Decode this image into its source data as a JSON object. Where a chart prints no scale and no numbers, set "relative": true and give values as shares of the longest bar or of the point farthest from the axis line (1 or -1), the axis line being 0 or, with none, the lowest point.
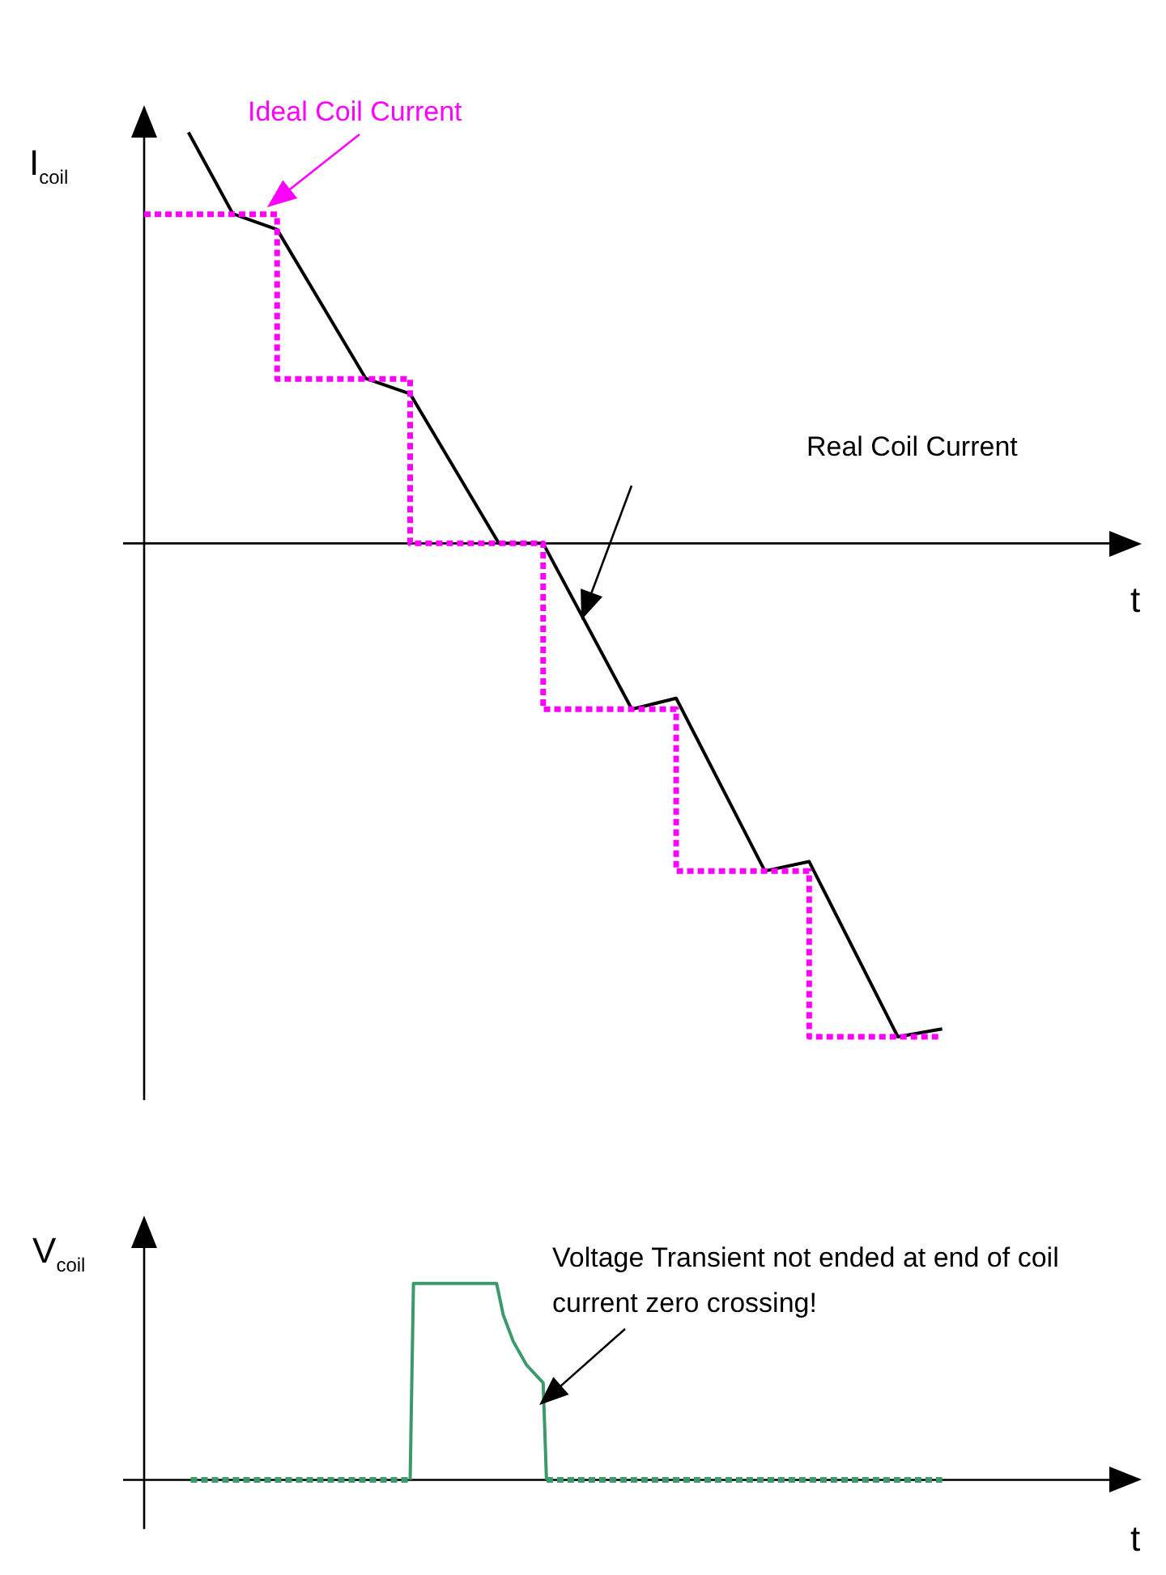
{
  "chart_data": [
    {
      "type": "line",
      "relative": true,
      "grid": false,
      "legend": false,
      "marker": "none",
      "ylabel": "I$_{coil}$",
      "xlabel": "t",
      "categories": [
        null,
        null,
        null,
        null,
        null,
        null,
        null,
        null,
        null,
        null,
        null,
        null,
        null,
        null,
        null,
        null,
        null,
        null,
        null,
        null,
        null,
        null,
        null,
        null,
        null,
        null,
        null,
        null,
        null,
        null,
        null,
        null,
        null,
        null,
        null,
        null,
        null,
        null,
        null,
        null,
        null,
        null,
        null,
        null,
        null,
        null
      ],
      "series": [
        {
          "type": "step",
          "color": "#ff00ff",
          "line_style": "dotted",
          "values": [
            0.667,
            null,
            null,
            null,
            null,
            null,
            0.333,
            null,
            null,
            null,
            null,
            null,
            0,
            null,
            null,
            null,
            null,
            null,
            -0.336,
            null,
            null,
            null,
            null,
            null,
            -0.664,
            null,
            null,
            null,
            null,
            null,
            -1,
            null,
            null,
            null,
            null,
            null,
            -1,
            null,
            null,
            null,
            null,
            null,
            null,
            null,
            null,
            null
          ]
        },
        {
          "type": "line",
          "color": "#000000",
          "line_style": "solid",
          "values": [
            null,
            null,
            0.833,
            null,
            0.668,
            null,
            0.636,
            null,
            null,
            null,
            0.334,
            null,
            0.303,
            null,
            null,
            null,
            0,
            null,
            0,
            null,
            null,
            null,
            -0.336,
            null,
            -0.314,
            null,
            null,
            null,
            -0.664,
            null,
            -0.645,
            null,
            null,
            null,
            -1,
            null,
            -0.984,
            null,
            null,
            null,
            null,
            null,
            null,
            null,
            null,
            null
          ]
        }
      ],
      "annotations": [
        "Ideal Coil Current",
        "Real Coil Current"
      ]
    },
    {
      "type": "line",
      "relative": true,
      "grid": false,
      "legend": false,
      "marker": "none",
      "ylabel": "V$_{coil}$",
      "xlabel": "t",
      "categories": [
        null,
        null,
        null,
        null,
        null,
        null,
        null,
        null,
        null,
        null,
        null,
        null,
        null,
        null,
        null,
        null,
        null,
        null,
        null,
        null,
        null,
        null,
        null,
        null,
        null,
        null,
        null,
        null,
        null,
        null,
        null,
        null,
        null,
        null,
        null,
        null,
        null,
        null,
        null,
        null,
        null,
        null,
        null,
        null,
        null,
        null,
        null,
        null,
        null,
        null,
        null,
        null,
        null,
        null,
        null,
        null,
        null,
        null,
        null,
        null,
        null,
        null,
        null,
        null,
        null,
        null,
        null,
        null,
        null,
        null,
        null,
        null,
        null,
        null,
        null,
        null,
        null,
        null,
        null,
        null,
        null,
        null,
        null,
        null,
        null,
        null,
        null,
        null,
        null,
        null,
        null,
        null,
        null,
        null,
        null,
        null,
        null,
        null,
        null,
        null,
        null,
        null,
        null,
        null,
        null,
        null,
        null,
        null,
        null,
        null,
        null,
        null,
        null,
        null,
        null,
        null,
        null,
        null,
        null,
        null,
        null,
        null,
        null,
        null,
        null,
        null,
        null,
        null,
        null,
        null,
        null,
        null,
        null,
        null,
        null,
        null,
        null,
        null,
        null,
        null,
        null,
        null,
        null,
        null,
        null,
        null,
        null,
        null,
        null,
        null,
        null,
        null,
        null,
        null,
        null,
        null,
        null,
        null,
        null,
        null,
        null,
        null,
        null,
        null,
        null,
        null,
        null,
        null,
        null,
        null,
        null,
        null,
        null,
        null,
        null,
        null,
        null,
        null,
        null,
        null,
        null,
        null,
        null,
        null,
        null,
        null,
        null,
        null,
        null,
        null,
        null,
        null,
        null,
        null,
        null,
        null,
        null,
        null,
        null,
        null,
        null,
        null,
        null,
        null,
        null,
        null,
        null,
        null,
        null,
        null,
        null,
        null,
        null,
        null,
        null,
        null,
        null,
        null,
        null,
        null,
        null,
        null,
        null,
        null,
        null,
        null,
        null,
        null,
        null,
        null,
        null,
        null,
        null,
        null,
        null,
        null,
        null,
        null,
        null,
        null,
        null,
        null,
        null,
        null,
        null,
        null,
        null,
        null,
        null,
        null,
        null,
        null,
        null,
        null,
        null,
        null,
        null,
        null,
        null,
        null,
        null,
        null,
        null,
        null,
        null,
        null,
        null,
        null,
        null,
        null,
        null,
        null,
        null,
        null,
        null,
        null,
        null,
        null,
        null,
        null,
        null,
        null,
        null,
        null,
        null,
        null,
        null,
        null,
        null,
        null,
        null,
        null,
        null,
        null,
        null,
        null,
        null,
        null,
        null,
        null,
        null
      ],
      "series": [
        {
          "type": "line",
          "color": "#3a9a6a",
          "line_style": "dotted",
          "values": [
            null,
            null,
            null,
            null,
            null,
            null,
            null,
            null,
            null,
            null,
            null,
            null,
            null,
            null,
            0,
            null,
            null,
            null,
            null,
            null,
            null,
            null,
            null,
            null,
            null,
            null,
            null,
            null,
            null,
            null,
            null,
            null,
            null,
            null,
            null,
            null,
            null,
            null,
            null,
            null,
            null,
            null,
            null,
            null,
            null,
            null,
            null,
            null,
            null,
            null,
            null,
            null,
            null,
            null,
            null,
            null,
            null,
            null,
            null,
            null,
            null,
            null,
            null,
            null,
            null,
            null,
            null,
            null,
            null,
            null,
            null,
            null,
            null,
            null,
            null,
            null,
            null,
            null,
            null,
            null,
            0,
            null,
            null,
            null,
            null,
            null,
            null,
            null,
            null,
            null,
            null,
            null,
            null,
            null,
            null,
            null,
            null,
            null,
            null,
            null,
            null,
            null,
            null,
            null,
            null,
            null,
            null,
            null,
            null,
            null,
            null,
            null,
            null,
            null,
            null,
            null,
            null,
            null,
            null,
            null,
            null,
            null,
            null,
            null,
            null,
            null,
            null,
            null,
            null,
            null,
            null,
            null,
            null,
            null,
            null,
            null,
            null,
            null,
            null,
            null,
            null,
            null,
            null,
            null,
            null,
            null,
            null,
            null,
            null,
            null,
            null,
            null,
            null,
            null,
            null,
            null,
            null,
            null,
            null,
            null,
            null,
            null,
            null,
            null,
            null,
            null,
            null,
            null,
            null,
            null,
            null,
            null,
            null,
            null,
            null,
            null,
            null,
            null,
            null,
            null,
            null,
            null,
            null,
            null,
            null,
            null,
            null,
            null,
            null,
            null,
            null,
            null,
            null,
            null,
            null,
            null,
            null,
            null,
            null,
            null,
            null,
            null,
            null,
            null,
            null,
            null,
            null,
            null,
            null,
            null,
            null,
            null,
            null,
            null,
            null,
            null,
            null,
            null,
            null,
            null,
            null,
            null,
            null,
            null,
            null,
            null,
            null,
            null,
            null,
            null,
            null,
            null,
            null,
            null,
            null,
            null,
            null,
            null,
            null,
            null,
            null,
            null,
            null,
            null,
            null,
            null,
            null,
            null,
            null,
            null,
            null,
            null,
            null,
            null,
            null,
            null,
            null,
            null,
            null,
            null,
            null,
            null,
            null,
            null,
            null,
            null,
            null,
            null,
            null,
            null,
            null,
            null,
            null,
            null,
            null,
            null,
            null,
            null,
            null,
            null,
            null,
            null,
            null,
            null,
            null,
            null,
            null,
            null,
            null,
            null,
            null,
            null,
            null,
            null,
            null,
            null,
            null,
            null,
            null,
            null,
            null
          ]
        },
        {
          "type": "line",
          "color": "#3a9a6a",
          "line_style": "solid",
          "values": [
            null,
            null,
            null,
            null,
            null,
            null,
            null,
            null,
            null,
            null,
            null,
            null,
            null,
            null,
            null,
            null,
            null,
            null,
            null,
            null,
            null,
            null,
            null,
            null,
            null,
            null,
            null,
            null,
            null,
            null,
            null,
            null,
            null,
            null,
            null,
            null,
            null,
            null,
            null,
            null,
            null,
            null,
            null,
            null,
            null,
            null,
            null,
            null,
            null,
            null,
            null,
            null,
            null,
            null,
            null,
            null,
            null,
            null,
            null,
            null,
            null,
            null,
            null,
            null,
            null,
            null,
            null,
            null,
            null,
            null,
            null,
            null,
            null,
            null,
            null,
            null,
            null,
            null,
            null,
            null,
            0,
            1,
            null,
            null,
            null,
            null,
            null,
            null,
            null,
            null,
            null,
            null,
            null,
            null,
            null,
            null,
            null,
            null,
            null,
            null,
            null,
            null,
            null,
            null,
            null,
            null,
            1,
            null,
            0.84,
            null,
            null,
            0.705,
            null,
            null,
            null,
            0.585,
            null,
            null,
            null,
            null,
            0.494,
            0,
            null,
            null,
            null,
            null,
            null,
            null,
            null,
            null,
            null,
            null,
            null,
            null,
            null,
            null,
            null,
            null,
            null,
            null,
            null,
            null,
            null,
            null,
            null,
            null,
            null,
            null,
            null,
            null,
            null,
            null,
            null,
            null,
            null,
            null,
            null,
            null,
            null,
            null,
            null,
            null,
            null,
            null,
            null,
            null,
            null,
            null,
            null,
            null,
            null,
            null,
            null,
            null,
            null,
            null,
            null,
            null,
            null,
            null,
            null,
            null,
            null,
            null,
            null,
            null,
            null,
            null,
            null,
            null,
            null,
            null,
            null,
            null,
            null,
            null,
            null,
            null,
            null,
            null,
            null,
            null,
            null,
            null,
            null,
            null,
            null,
            null,
            null,
            null,
            null,
            null,
            null,
            null,
            null,
            null,
            null,
            null,
            null,
            null,
            null,
            null,
            null,
            null,
            null,
            null,
            null,
            null,
            null,
            null,
            null,
            null,
            null,
            null,
            null,
            null,
            null,
            null,
            null,
            null,
            null,
            null,
            null,
            null,
            null,
            null,
            null,
            null,
            null,
            null,
            null,
            null,
            null,
            null,
            null,
            null,
            null,
            null,
            null,
            null,
            null,
            null,
            null,
            null,
            null,
            null,
            null,
            null,
            null,
            null,
            null,
            null,
            null,
            null,
            null,
            null,
            null,
            null,
            null,
            null,
            null,
            null,
            null,
            null,
            null,
            null,
            null,
            null,
            null,
            null,
            null,
            null,
            null,
            null,
            null,
            null,
            null,
            null,
            null,
            null,
            null
          ]
        },
        {
          "type": "line",
          "color": "#3a9a6a",
          "line_style": "dotted",
          "values": [
            null,
            null,
            null,
            null,
            null,
            null,
            null,
            null,
            null,
            null,
            null,
            null,
            null,
            null,
            null,
            null,
            null,
            null,
            null,
            null,
            null,
            null,
            null,
            null,
            null,
            null,
            null,
            null,
            null,
            null,
            null,
            null,
            null,
            null,
            null,
            null,
            null,
            null,
            null,
            null,
            null,
            null,
            null,
            null,
            null,
            null,
            null,
            null,
            null,
            null,
            null,
            null,
            null,
            null,
            null,
            null,
            null,
            null,
            null,
            null,
            null,
            null,
            null,
            null,
            null,
            null,
            null,
            null,
            null,
            null,
            null,
            null,
            null,
            null,
            null,
            null,
            null,
            null,
            null,
            null,
            null,
            null,
            null,
            null,
            null,
            null,
            null,
            null,
            null,
            null,
            null,
            null,
            null,
            null,
            null,
            null,
            null,
            null,
            null,
            null,
            null,
            null,
            null,
            null,
            null,
            null,
            null,
            null,
            null,
            null,
            null,
            null,
            null,
            null,
            null,
            null,
            null,
            null,
            null,
            null,
            null,
            0,
            null,
            null,
            null,
            null,
            null,
            null,
            null,
            null,
            null,
            null,
            null,
            null,
            null,
            null,
            null,
            null,
            null,
            null,
            null,
            null,
            null,
            null,
            null,
            null,
            null,
            null,
            null,
            null,
            null,
            null,
            null,
            null,
            null,
            null,
            null,
            null,
            null,
            null,
            null,
            null,
            null,
            null,
            null,
            null,
            null,
            null,
            null,
            null,
            null,
            null,
            null,
            null,
            null,
            null,
            null,
            null,
            null,
            null,
            null,
            null,
            null,
            null,
            null,
            null,
            null,
            null,
            null,
            null,
            null,
            null,
            null,
            null,
            null,
            null,
            null,
            null,
            null,
            null,
            null,
            null,
            null,
            null,
            null,
            null,
            null,
            null,
            null,
            null,
            null,
            null,
            null,
            null,
            null,
            null,
            null,
            null,
            null,
            null,
            null,
            null,
            null,
            null,
            null,
            null,
            null,
            null,
            null,
            null,
            null,
            null,
            null,
            null,
            null,
            null,
            null,
            null,
            null,
            null,
            0,
            null,
            null,
            null,
            null,
            null,
            null,
            null,
            null,
            null,
            null,
            null,
            null,
            null,
            null,
            null,
            null,
            null,
            null,
            null,
            null,
            null,
            null,
            null,
            null,
            null,
            null,
            null,
            null,
            null,
            null,
            null,
            null,
            null,
            null,
            null,
            null,
            null,
            null,
            null,
            null,
            null,
            null,
            null,
            null,
            null,
            null,
            null,
            null,
            null,
            null,
            null,
            null,
            null,
            null,
            null,
            null,
            null,
            null,
            null,
            null
          ]
        }
      ],
      "annotations": [
        "Voltage Transient not ended at end of coil current zero crossing!"
      ]
    }
  ]
}
